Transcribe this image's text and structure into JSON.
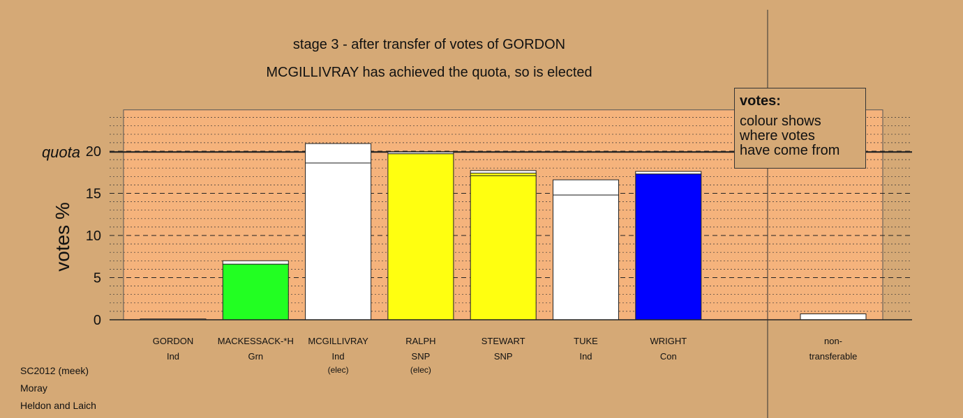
{
  "title": "stage 3 - after transfer of votes of GORDON",
  "subtitle": "MCGILLIVRAY has achieved the quota, so is elected",
  "legend": {
    "heading": "votes:",
    "lines": [
      "colour shows",
      "where votes",
      "have come from"
    ]
  },
  "footer": [
    "SC2012 (meek)",
    "Moray",
    "Heldon and Laich"
  ],
  "colors": {
    "background": "#d5a976",
    "plot_background": "#f5b37c"
  },
  "chart_data": {
    "type": "bar",
    "stacked": true,
    "ylabel": "votes %",
    "quota_label": "quota",
    "quota": 19.9,
    "ylim": [
      0,
      24.9
    ],
    "yticks": [
      0,
      5,
      10,
      15,
      20
    ],
    "grid": true,
    "categories": [
      {
        "name": "GORDON",
        "party": "Ind",
        "note": "",
        "segments": [
          {
            "value": 0.1,
            "color": "#ffffff"
          }
        ]
      },
      {
        "name": "MACKESSACK-*H",
        "party": "Grn",
        "note": "",
        "segments": [
          {
            "value": 6.6,
            "color": "#22ff22"
          },
          {
            "value": 0.4,
            "color": "#ffffff"
          }
        ]
      },
      {
        "name": "MCGILLIVRAY",
        "party": "Ind",
        "note": "(elec)",
        "segments": [
          {
            "value": 18.6,
            "color": "#ffffff"
          },
          {
            "value": 2.3,
            "color": "#ffffff"
          }
        ]
      },
      {
        "name": "RALPH",
        "party": "SNP",
        "note": "(elec)",
        "segments": [
          {
            "value": 19.7,
            "color": "#ffff10"
          },
          {
            "value": 0.2,
            "color": "#ffffff"
          }
        ]
      },
      {
        "name": "STEWART",
        "party": "SNP",
        "note": "",
        "segments": [
          {
            "value": 17.1,
            "color": "#ffff10"
          },
          {
            "value": 0.3,
            "color": "#ffff10"
          },
          {
            "value": 0.3,
            "color": "#ffffff"
          }
        ]
      },
      {
        "name": "TUKE",
        "party": "Ind",
        "note": "",
        "segments": [
          {
            "value": 14.8,
            "color": "#ffffff"
          },
          {
            "value": 1.8,
            "color": "#ffffff"
          }
        ]
      },
      {
        "name": "WRIGHT",
        "party": "Con",
        "note": "",
        "segments": [
          {
            "value": 17.3,
            "color": "#0000ff"
          },
          {
            "value": 0.3,
            "color": "#ffffff"
          }
        ]
      }
    ],
    "nontransferable": {
      "line1": "non-",
      "line2": "transferable",
      "value": 0.7,
      "color": "#ffffff"
    }
  }
}
